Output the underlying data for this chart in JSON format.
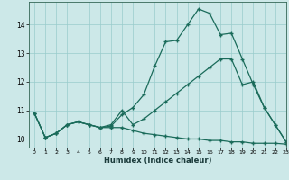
{
  "xlabel": "Humidex (Indice chaleur)",
  "bg_color": "#cce8e8",
  "grid_color": "#99cccc",
  "line_color": "#1a6b5a",
  "xlim": [
    -0.5,
    23
  ],
  "ylim": [
    9.7,
    14.8
  ],
  "xticks": [
    0,
    1,
    2,
    3,
    4,
    5,
    6,
    7,
    8,
    9,
    10,
    11,
    12,
    13,
    14,
    15,
    16,
    17,
    18,
    19,
    20,
    21,
    22,
    23
  ],
  "yticks": [
    10,
    11,
    12,
    13,
    14
  ],
  "line1_x": [
    0,
    1,
    2,
    3,
    4,
    5,
    6,
    7,
    8,
    9,
    10,
    11,
    12,
    13,
    14,
    15,
    16,
    17,
    18,
    19,
    20,
    21,
    22,
    23
  ],
  "line1_y": [
    10.9,
    10.05,
    10.2,
    10.5,
    10.6,
    10.5,
    10.4,
    10.45,
    10.85,
    11.1,
    11.55,
    12.55,
    13.4,
    13.45,
    14.0,
    14.55,
    14.4,
    13.65,
    13.7,
    12.8,
    11.9,
    11.1,
    10.5,
    9.9
  ],
  "line2_x": [
    0,
    1,
    2,
    3,
    4,
    5,
    6,
    7,
    8,
    9,
    10,
    11,
    12,
    13,
    14,
    15,
    16,
    17,
    18,
    19,
    20,
    21,
    22,
    23
  ],
  "line2_y": [
    10.9,
    10.05,
    10.2,
    10.5,
    10.6,
    10.5,
    10.4,
    10.5,
    11.0,
    10.5,
    10.7,
    11.0,
    11.3,
    11.6,
    11.9,
    12.2,
    12.5,
    12.8,
    12.8,
    11.9,
    12.0,
    11.1,
    10.5,
    9.9
  ],
  "line3_x": [
    0,
    1,
    2,
    3,
    4,
    5,
    6,
    7,
    8,
    9,
    10,
    11,
    12,
    13,
    14,
    15,
    16,
    17,
    18,
    19,
    20,
    21,
    22,
    23
  ],
  "line3_y": [
    10.9,
    10.05,
    10.2,
    10.5,
    10.6,
    10.5,
    10.4,
    10.4,
    10.4,
    10.3,
    10.2,
    10.15,
    10.1,
    10.05,
    10.0,
    10.0,
    9.95,
    9.95,
    9.9,
    9.9,
    9.85,
    9.85,
    9.85,
    9.82
  ]
}
